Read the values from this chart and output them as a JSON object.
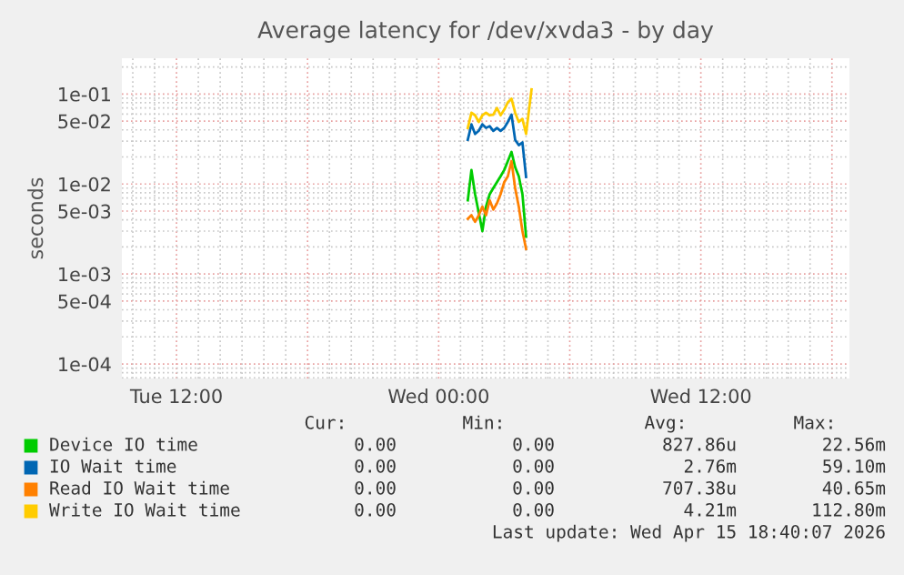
{
  "chart_data": {
    "type": "line",
    "title": "Average latency for /dev/xvda3 - by day",
    "ylabel": "seconds",
    "log": "y",
    "grid": true,
    "legend": "bottom",
    "line_style": "solid",
    "marker": "none",
    "xlim": [
      "2026-04-14T09:30",
      "2026-04-15T18:48"
    ],
    "xticks": [
      {
        "value": "2026-04-14T12:00",
        "label": "Tue 12:00"
      },
      {
        "value": "2026-04-15T00:00",
        "label": "Wed 00:00"
      },
      {
        "value": "2026-04-15T12:00",
        "label": "Wed 12:00"
      }
    ],
    "ylim": [
      6.9e-05,
      0.25
    ],
    "yticks": [
      {
        "value": 0.0001,
        "label": "1e-04"
      },
      {
        "value": 0.0005,
        "label": "5e-04"
      },
      {
        "value": 0.001,
        "label": "1e-03"
      },
      {
        "value": 0.005,
        "label": "5e-03"
      },
      {
        "value": 0.01,
        "label": "1e-02"
      },
      {
        "value": 0.05,
        "label": "5e-02"
      },
      {
        "value": 0.1,
        "label": "1e-01"
      }
    ],
    "x": [
      "2026-04-15T01:20",
      "2026-04-15T01:30",
      "2026-04-15T01:40",
      "2026-04-15T01:50",
      "2026-04-15T02:00",
      "2026-04-15T02:10",
      "2026-04-15T02:20",
      "2026-04-15T02:30",
      "2026-04-15T02:40",
      "2026-04-15T02:50",
      "2026-04-15T03:00",
      "2026-04-15T03:10",
      "2026-04-15T03:20",
      "2026-04-15T03:30",
      "2026-04-15T03:40",
      "2026-04-15T03:50",
      "2026-04-15T04:00"
    ],
    "series": [
      {
        "name": "Device IO time",
        "color": "#00cc00",
        "values": [
          0.0066,
          0.0143,
          0.0077,
          0.0048,
          0.003,
          0.0056,
          0.0077,
          0.009,
          0.0105,
          0.0122,
          0.0143,
          0.018,
          0.0227,
          0.0154,
          0.0122,
          0.0077,
          0.0026
        ]
      },
      {
        "name": "IO Wait time",
        "color": "#0066b3",
        "values": [
          0.031,
          0.046,
          0.036,
          0.039,
          0.046,
          0.042,
          0.044,
          0.039,
          0.042,
          0.039,
          0.042,
          0.049,
          0.059,
          0.031,
          0.027,
          0.029,
          0.012
        ]
      },
      {
        "name": "Read IO Wait time",
        "color": "#ff8000",
        "values": [
          0.0041,
          0.0045,
          0.0038,
          0.0045,
          0.0056,
          0.0045,
          0.0066,
          0.0052,
          0.0061,
          0.0077,
          0.0105,
          0.0122,
          0.018,
          0.009,
          0.0056,
          0.003,
          0.0019
        ]
      },
      {
        "name": "Write IO Wait time",
        "color": "#ffcc00",
        "x": [
          "2026-04-15T01:20",
          "2026-04-15T01:30",
          "2026-04-15T01:40",
          "2026-04-15T01:50",
          "2026-04-15T02:00",
          "2026-04-15T02:10",
          "2026-04-15T02:20",
          "2026-04-15T02:30",
          "2026-04-15T02:40",
          "2026-04-15T02:50",
          "2026-04-15T03:00",
          "2026-04-15T03:10",
          "2026-04-15T03:20",
          "2026-04-15T03:30",
          "2026-04-15T03:40",
          "2026-04-15T03:50",
          "2026-04-15T04:00",
          "2026-04-15T04:15"
        ],
        "values": [
          0.042,
          0.062,
          0.058,
          0.049,
          0.058,
          0.062,
          0.058,
          0.059,
          0.07,
          0.058,
          0.067,
          0.081,
          0.089,
          0.062,
          0.049,
          0.053,
          0.036,
          0.1128
        ]
      }
    ],
    "annotations": [
      "Cur:",
      "Min:",
      "Avg:",
      "Max:",
      "0.00",
      "0.00",
      "827.86u",
      "22.56m",
      "0.00",
      "0.00",
      "2.76m",
      "59.10m",
      "0.00",
      "0.00",
      "707.38u",
      "40.65m",
      "0.00",
      "0.00",
      "4.21m",
      "112.80m",
      "Last update: Wed Apr 15 18:40:07 2026"
    ]
  }
}
